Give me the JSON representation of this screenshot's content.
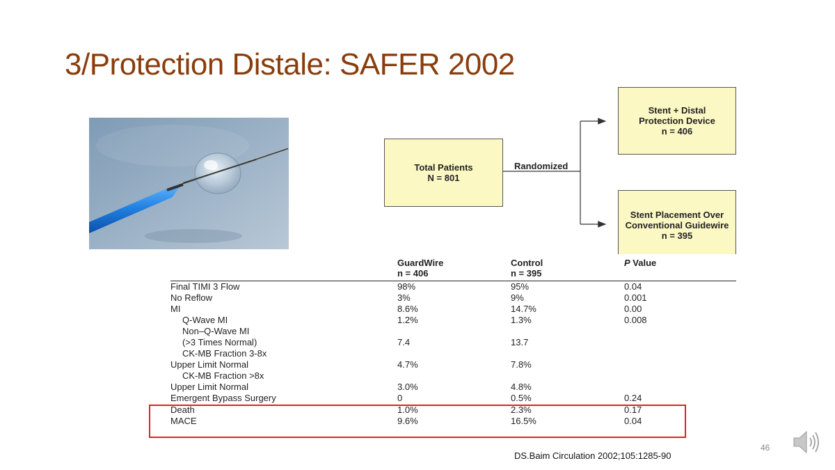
{
  "slide": {
    "title": "3/Protection Distale: SAFER 2002",
    "page_number": "46",
    "citation": "DS.Baim Circulation 2002;105:1285-90"
  },
  "flowchart": {
    "total_line1": "Total Patients",
    "total_line2": "N = 801",
    "randomized": "Randomized",
    "arm_a_line1": "Stent + Distal",
    "arm_a_line2": "Protection Device",
    "arm_a_line3": "n = 406",
    "arm_b_line1": "Stent Placement Over",
    "arm_b_line2": "Conventional Guidewire",
    "arm_b_line3": "n = 395",
    "box_color": "#fbf8c4"
  },
  "table": {
    "headers": [
      {
        "line1": "GuardWire",
        "line2": "n = 406"
      },
      {
        "line1": "Control",
        "line2": "n = 395"
      },
      {
        "line1": "",
        "line2": "P Value"
      }
    ],
    "rows": [
      {
        "label": "Final TIMI 3 Flow",
        "guardwire": "98%",
        "control": "95%",
        "p": "0.04"
      },
      {
        "label": "No Reflow",
        "guardwire": "3%",
        "control": "9%",
        "p": "0.001"
      },
      {
        "label": "MI",
        "guardwire": "8.6%",
        "control": "14.7%",
        "p": "0.00"
      },
      {
        "label": "Q-Wave MI",
        "guardwire": "1.2%",
        "control": "1.3%",
        "p": "0.008"
      },
      {
        "label": "Non–Q-Wave MI",
        "guardwire": "",
        "control": "",
        "p": ""
      },
      {
        "label": "(>3 Times Normal)",
        "guardwire": "7.4",
        "control": "13.7",
        "p": ""
      },
      {
        "label": "CK-MB Fraction 3-8x",
        "guardwire": "",
        "control": "",
        "p": ""
      },
      {
        "label": "Upper Limit Normal",
        "guardwire": "4.7%",
        "control": "7.8%",
        "p": ""
      },
      {
        "label": "CK-MB Fraction >8x",
        "guardwire": "",
        "control": "",
        "p": ""
      },
      {
        "label": "Upper Limit Normal",
        "guardwire": "3.0%",
        "control": "4.8%",
        "p": ""
      },
      {
        "label": "Emergent Bypass Surgery",
        "guardwire": "0",
        "control": "0.5%",
        "p": "0.24"
      },
      {
        "label": "Death",
        "guardwire": "1.0%",
        "control": "2.3%",
        "p": "0.17"
      },
      {
        "label": "MACE",
        "guardwire": "9.6%",
        "control": "16.5%",
        "p": "0.04"
      }
    ],
    "highlight_color": "#e12020"
  },
  "icons": {
    "photo": "guidewire-balloon-photo",
    "speaker": "speaker-icon"
  }
}
